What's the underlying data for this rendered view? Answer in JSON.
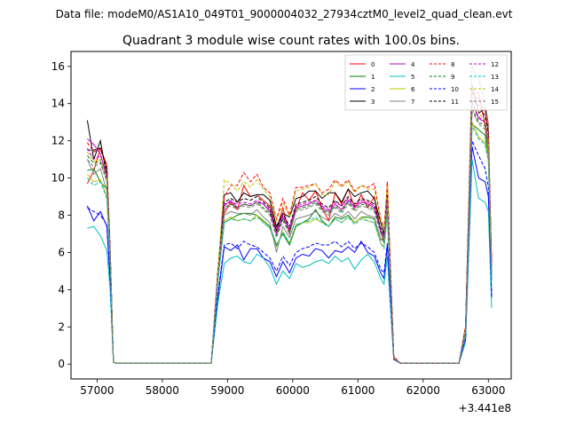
{
  "figure": {
    "suptitle": "Data file: modeM0/AS1A10_049T01_9000004032_27934cztM0_level2_quad_clean.evt"
  },
  "chart_data": {
    "type": "line",
    "title": "Quadrant 3 module wise count rates with 100.0s bins.",
    "xlabel": "",
    "ylabel": "",
    "x_offset_label": "+3.441e8",
    "xlim": [
      56600,
      63350
    ],
    "ylim": [
      -0.8,
      16.8
    ],
    "xticks": [
      57000,
      58000,
      59000,
      60000,
      61000,
      62000,
      63000
    ],
    "xtick_labels": [
      "57000",
      "58000",
      "59000",
      "60000",
      "61000",
      "62000",
      "63000"
    ],
    "yticks": [
      0,
      2,
      4,
      6,
      8,
      10,
      12,
      14,
      16
    ],
    "ytick_labels": [
      "0",
      "2",
      "4",
      "6",
      "8",
      "10",
      "12",
      "14",
      "16"
    ],
    "grid": false,
    "legend_position": "top-right",
    "legend_columns": 4,
    "x": [
      56850,
      56950,
      57050,
      57150,
      57200,
      57250,
      57300,
      57400,
      57600,
      57800,
      58000,
      58200,
      58400,
      58600,
      58750,
      58850,
      58950,
      59050,
      59150,
      59250,
      59350,
      59450,
      59550,
      59650,
      59750,
      59850,
      59950,
      60050,
      60150,
      60250,
      60350,
      60450,
      60550,
      60650,
      60750,
      60850,
      60950,
      61050,
      61150,
      61250,
      61350,
      61400,
      61450,
      61550,
      61650,
      61800,
      62000,
      62200,
      62400,
      62550,
      62650,
      62750,
      62850,
      62950,
      63000,
      63050
    ],
    "series": [
      {
        "name": "0",
        "color": "#ff0000",
        "dash": "solid",
        "values": [
          9.7,
          10.4,
          11.6,
          10.7,
          6.0,
          0.1,
          0.05,
          0.05,
          0.05,
          0.05,
          0.05,
          0.05,
          0.05,
          0.05,
          0.05,
          4.6,
          8.1,
          8.7,
          8.3,
          9.6,
          9.0,
          9.1,
          8.8,
          8.5,
          7.2,
          8.4,
          7.0,
          8.3,
          9.2,
          8.8,
          9.3,
          8.4,
          7.7,
          9.2,
          8.6,
          9.4,
          8.4,
          9.1,
          8.4,
          9.0,
          7.1,
          6.5,
          9.8,
          0.4,
          0.05,
          0.05,
          0.05,
          0.05,
          0.05,
          0.05,
          2.0,
          14.5,
          14.6,
          12.8,
          11.5,
          5.5
        ]
      },
      {
        "name": "1",
        "color": "#008000",
        "dash": "solid",
        "values": [
          10.4,
          10.5,
          9.8,
          9.4,
          5.8,
          0.1,
          0.05,
          0.05,
          0.05,
          0.05,
          0.05,
          0.05,
          0.05,
          0.05,
          0.05,
          4.5,
          7.6,
          7.8,
          8.0,
          8.1,
          8.1,
          8.0,
          7.7,
          7.4,
          6.4,
          7.0,
          6.4,
          7.4,
          7.6,
          7.8,
          8.3,
          7.7,
          7.4,
          7.9,
          7.8,
          8.0,
          7.6,
          7.9,
          7.9,
          7.8,
          6.7,
          6.7,
          8.2,
          0.3,
          0.05,
          0.05,
          0.05,
          0.05,
          0.05,
          0.05,
          1.7,
          12.9,
          12.6,
          12.3,
          11.0,
          4.5
        ]
      },
      {
        "name": "2",
        "color": "#0000ff",
        "dash": "solid",
        "values": [
          8.5,
          7.7,
          8.2,
          7.4,
          4.5,
          0.1,
          0.05,
          0.05,
          0.05,
          0.05,
          0.05,
          0.05,
          0.05,
          0.05,
          0.05,
          3.5,
          6.3,
          6.1,
          6.4,
          5.6,
          6.2,
          6.2,
          5.7,
          5.5,
          4.7,
          5.5,
          4.9,
          5.7,
          5.9,
          5.8,
          6.2,
          6.1,
          5.7,
          6.1,
          6.0,
          6.3,
          6.0,
          6.6,
          6.0,
          5.8,
          4.9,
          4.6,
          6.4,
          0.25,
          0.05,
          0.05,
          0.05,
          0.05,
          0.05,
          0.05,
          1.3,
          11.7,
          10.0,
          9.8,
          9.0,
          3.6
        ]
      },
      {
        "name": "3",
        "color": "#000000",
        "dash": "solid",
        "values": [
          13.1,
          11.0,
          12.0,
          10.1,
          6.0,
          0.1,
          0.05,
          0.05,
          0.05,
          0.05,
          0.05,
          0.05,
          0.05,
          0.05,
          0.05,
          4.9,
          9.1,
          9.2,
          8.7,
          9.2,
          9.0,
          9.1,
          9.1,
          8.8,
          7.4,
          8.1,
          7.9,
          8.9,
          9.0,
          9.3,
          9.3,
          8.9,
          9.2,
          9.2,
          8.7,
          9.4,
          9.0,
          9.2,
          9.3,
          8.9,
          7.6,
          7.0,
          9.4,
          0.3,
          0.05,
          0.05,
          0.05,
          0.05,
          0.05,
          0.05,
          2.0,
          15.0,
          13.5,
          13.7,
          12.5,
          5.0
        ]
      },
      {
        "name": "4",
        "color": "#bf00bf",
        "dash": "solid",
        "values": [
          12.1,
          11.8,
          11.3,
          10.0,
          5.8,
          0.1,
          0.05,
          0.05,
          0.05,
          0.05,
          0.05,
          0.05,
          0.05,
          0.05,
          0.05,
          4.6,
          8.5,
          8.8,
          8.4,
          8.6,
          8.5,
          8.7,
          8.6,
          8.2,
          7.0,
          7.9,
          7.2,
          8.4,
          8.5,
          8.6,
          8.8,
          8.4,
          8.2,
          8.6,
          8.3,
          8.8,
          8.4,
          8.7,
          8.6,
          8.4,
          7.2,
          6.8,
          8.9,
          0.3,
          0.05,
          0.05,
          0.05,
          0.05,
          0.05,
          0.05,
          1.9,
          14.1,
          13.2,
          13.0,
          11.8,
          4.8
        ]
      },
      {
        "name": "5",
        "color": "#00bfbf",
        "dash": "solid",
        "values": [
          7.3,
          7.4,
          6.9,
          6.1,
          4.0,
          0.1,
          0.05,
          0.05,
          0.05,
          0.05,
          0.05,
          0.05,
          0.05,
          0.05,
          0.05,
          3.2,
          5.4,
          5.7,
          5.8,
          5.5,
          5.4,
          5.9,
          5.7,
          5.2,
          4.3,
          5.0,
          4.6,
          5.4,
          5.2,
          5.3,
          5.5,
          5.6,
          5.4,
          5.8,
          5.5,
          5.7,
          5.1,
          5.6,
          5.9,
          5.5,
          4.6,
          4.3,
          5.8,
          0.25,
          0.05,
          0.05,
          0.05,
          0.05,
          0.05,
          0.05,
          1.2,
          11.0,
          8.9,
          8.7,
          8.2,
          3.0
        ]
      },
      {
        "name": "6",
        "color": "#bfbf00",
        "dash": "solid",
        "values": [
          10.2,
          9.8,
          9.9,
          9.0,
          5.5,
          0.1,
          0.05,
          0.05,
          0.05,
          0.05,
          0.05,
          0.05,
          0.05,
          0.05,
          0.05,
          4.4,
          7.7,
          7.9,
          7.7,
          7.8,
          7.7,
          8.0,
          7.6,
          7.3,
          6.3,
          7.1,
          6.5,
          7.5,
          7.6,
          7.6,
          7.8,
          7.6,
          7.4,
          7.8,
          7.6,
          7.9,
          7.6,
          7.9,
          7.7,
          7.6,
          6.5,
          6.3,
          8.0,
          0.3,
          0.05,
          0.05,
          0.05,
          0.05,
          0.05,
          0.05,
          1.7,
          13.0,
          12.2,
          11.9,
          11.0,
          4.5
        ]
      },
      {
        "name": "7",
        "color": "#808080",
        "dash": "solid",
        "values": [
          11.0,
          10.2,
          10.5,
          9.3,
          5.7,
          0.1,
          0.05,
          0.05,
          0.05,
          0.05,
          0.05,
          0.05,
          0.05,
          0.05,
          0.05,
          4.5,
          8.0,
          8.2,
          8.1,
          8.1,
          8.0,
          8.3,
          7.9,
          7.6,
          6.0,
          7.4,
          6.8,
          7.8,
          7.9,
          8.0,
          8.2,
          7.9,
          7.7,
          8.1,
          7.9,
          8.2,
          7.8,
          8.2,
          8.0,
          7.9,
          6.7,
          6.6,
          8.3,
          0.3,
          0.05,
          0.05,
          0.05,
          0.05,
          0.05,
          0.05,
          1.8,
          16.0,
          15.3,
          14.1,
          12.9,
          5.0
        ]
      },
      {
        "name": "8",
        "color": "#ff0000",
        "dash": "dashed",
        "values": [
          11.9,
          11.4,
          11.6,
          10.5,
          6.3,
          0.1,
          0.05,
          0.05,
          0.05,
          0.05,
          0.05,
          0.05,
          0.05,
          0.05,
          0.05,
          4.9,
          9.0,
          9.6,
          9.6,
          10.3,
          9.8,
          10.2,
          9.5,
          9.2,
          7.8,
          8.9,
          8.0,
          9.5,
          9.5,
          9.6,
          9.7,
          9.2,
          9.4,
          9.9,
          9.6,
          9.9,
          9.3,
          9.6,
          9.5,
          9.7,
          7.8,
          7.3,
          9.7,
          0.35,
          0.05,
          0.05,
          0.05,
          0.05,
          0.05,
          0.05,
          2.1,
          14.6,
          14.2,
          13.6,
          12.5,
          5.2
        ]
      },
      {
        "name": "9",
        "color": "#008000",
        "dash": "dashed",
        "values": [
          11.2,
          10.8,
          10.9,
          9.9,
          5.9,
          0.1,
          0.05,
          0.05,
          0.05,
          0.05,
          0.05,
          0.05,
          0.05,
          0.05,
          0.05,
          4.6,
          8.4,
          8.6,
          8.4,
          8.6,
          8.5,
          8.7,
          8.4,
          8.1,
          6.9,
          7.8,
          7.1,
          8.3,
          8.4,
          8.5,
          8.7,
          8.3,
          8.1,
          8.5,
          8.2,
          8.7,
          8.3,
          8.6,
          8.5,
          8.3,
          7.1,
          6.8,
          8.8,
          0.3,
          0.05,
          0.05,
          0.05,
          0.05,
          0.05,
          0.05,
          1.9,
          13.8,
          13.0,
          12.8,
          11.6,
          4.7
        ]
      },
      {
        "name": "10",
        "color": "#0000ff",
        "dash": "dashed",
        "values": [
          8.4,
          8.2,
          8.0,
          7.5,
          4.7,
          0.1,
          0.05,
          0.05,
          0.05,
          0.05,
          0.05,
          0.05,
          0.05,
          0.05,
          0.05,
          3.7,
          6.4,
          6.5,
          6.2,
          6.6,
          6.4,
          6.3,
          6.0,
          5.7,
          5.0,
          5.8,
          5.3,
          6.0,
          6.2,
          6.3,
          6.5,
          6.4,
          6.4,
          6.6,
          6.3,
          6.6,
          6.2,
          6.5,
          6.3,
          6.0,
          5.1,
          4.9,
          6.5,
          0.25,
          0.05,
          0.05,
          0.05,
          0.05,
          0.05,
          0.05,
          1.4,
          12.0,
          11.2,
          10.5,
          9.5,
          3.6
        ]
      },
      {
        "name": "11",
        "color": "#000000",
        "dash": "dashed",
        "values": [
          11.5,
          11.5,
          11.6,
          10.5,
          6.2,
          0.1,
          0.05,
          0.05,
          0.05,
          0.05,
          0.05,
          0.05,
          0.05,
          0.05,
          0.05,
          4.8,
          8.7,
          8.9,
          8.7,
          8.9,
          8.8,
          9.0,
          8.7,
          8.4,
          7.2,
          8.1,
          7.4,
          8.6,
          8.7,
          8.8,
          9.0,
          8.6,
          8.4,
          8.8,
          8.5,
          9.0,
          8.6,
          8.9,
          8.8,
          8.6,
          7.3,
          7.0,
          9.1,
          0.3,
          0.05,
          0.05,
          0.05,
          0.05,
          0.05,
          0.05,
          2.0,
          14.2,
          13.9,
          13.3,
          12.2,
          4.9
        ]
      },
      {
        "name": "12",
        "color": "#bf00bf",
        "dash": "dashed",
        "values": [
          11.6,
          11.0,
          11.2,
          10.2,
          6.0,
          0.1,
          0.05,
          0.05,
          0.05,
          0.05,
          0.05,
          0.05,
          0.05,
          0.05,
          0.05,
          4.7,
          8.6,
          8.7,
          8.6,
          8.7,
          8.6,
          8.8,
          8.6,
          8.3,
          7.1,
          8.0,
          7.3,
          8.5,
          8.6,
          8.7,
          8.8,
          8.5,
          8.3,
          8.7,
          8.5,
          8.9,
          8.5,
          8.8,
          8.7,
          8.5,
          7.2,
          6.9,
          8.9,
          0.3,
          0.05,
          0.05,
          0.05,
          0.05,
          0.05,
          0.05,
          1.9,
          14.0,
          13.3,
          13.0,
          11.9,
          4.8
        ]
      },
      {
        "name": "13",
        "color": "#00bfbf",
        "dash": "dashed",
        "values": [
          10.0,
          9.6,
          9.8,
          8.9,
          5.5,
          0.1,
          0.05,
          0.05,
          0.05,
          0.05,
          0.05,
          0.05,
          0.05,
          0.05,
          0.05,
          4.3,
          7.6,
          7.8,
          7.7,
          7.8,
          7.7,
          7.9,
          7.6,
          7.3,
          6.3,
          7.1,
          6.5,
          7.5,
          7.6,
          7.7,
          7.9,
          7.6,
          7.4,
          7.8,
          7.6,
          7.9,
          7.5,
          7.8,
          7.7,
          7.6,
          6.5,
          6.2,
          8.0,
          0.3,
          0.05,
          0.05,
          0.05,
          0.05,
          0.05,
          0.05,
          1.7,
          12.8,
          12.1,
          11.8,
          10.9,
          4.4
        ]
      },
      {
        "name": "14",
        "color": "#bfbf00",
        "dash": "dashed",
        "values": [
          11.4,
          10.9,
          11.0,
          10.0,
          6.0,
          0.1,
          0.05,
          0.05,
          0.05,
          0.05,
          0.05,
          0.05,
          0.05,
          0.05,
          0.05,
          4.8,
          9.9,
          9.7,
          9.3,
          9.8,
          9.5,
          9.9,
          9.4,
          9.0,
          7.7,
          8.7,
          7.9,
          9.3,
          9.4,
          9.5,
          9.7,
          9.1,
          9.1,
          9.8,
          9.5,
          9.8,
          9.2,
          9.6,
          9.4,
          9.4,
          7.7,
          7.2,
          9.6,
          0.35,
          0.05,
          0.05,
          0.05,
          0.05,
          0.05,
          0.05,
          2.0,
          14.3,
          13.5,
          13.1,
          12.0,
          4.9
        ]
      },
      {
        "name": "15",
        "color": "#808080",
        "dash": "dashed",
        "values": [
          11.0,
          10.6,
          10.8,
          9.8,
          5.9,
          0.1,
          0.05,
          0.05,
          0.05,
          0.05,
          0.05,
          0.05,
          0.05,
          0.05,
          0.05,
          4.6,
          8.3,
          8.5,
          8.3,
          8.5,
          8.4,
          8.6,
          8.3,
          8.0,
          6.8,
          7.7,
          7.0,
          8.2,
          8.3,
          8.4,
          8.6,
          8.2,
          8.0,
          8.4,
          8.1,
          8.6,
          8.2,
          8.5,
          8.4,
          8.2,
          7.0,
          6.7,
          8.7,
          0.3,
          0.05,
          0.05,
          0.05,
          0.05,
          0.05,
          0.05,
          1.8,
          13.6,
          12.9,
          12.6,
          11.5,
          4.6
        ]
      }
    ]
  }
}
